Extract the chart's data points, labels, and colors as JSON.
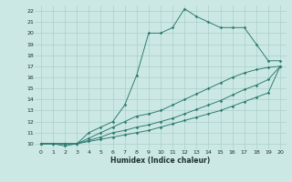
{
  "xlabel": "Humidex (Indice chaleur)",
  "bg_color": "#cce8e4",
  "grid_color": "#aacfcb",
  "line_color": "#2e7d72",
  "xlim": [
    -0.5,
    20.5
  ],
  "ylim": [
    9.5,
    22.5
  ],
  "xticks": [
    0,
    1,
    2,
    3,
    4,
    5,
    6,
    7,
    8,
    9,
    10,
    11,
    12,
    13,
    14,
    15,
    16,
    17,
    18,
    19,
    20
  ],
  "yticks": [
    10,
    11,
    12,
    13,
    14,
    15,
    16,
    17,
    18,
    19,
    20,
    21,
    22
  ],
  "series": [
    {
      "x": [
        0,
        1,
        2,
        3,
        4,
        5,
        6,
        7,
        8,
        9,
        10,
        11,
        12,
        13,
        14,
        15,
        16,
        17,
        18,
        19,
        20
      ],
      "y": [
        10,
        10,
        9.8,
        10,
        11,
        11.5,
        12,
        13.5,
        16.2,
        20,
        20,
        20.5,
        22.2,
        21.5,
        21,
        20.5,
        20.5,
        20.5,
        19,
        17.5,
        17.5
      ]
    },
    {
      "x": [
        0,
        1,
        2,
        3,
        4,
        5,
        6,
        7,
        8,
        9,
        10,
        11,
        12,
        13,
        14,
        15,
        16,
        17,
        18,
        19,
        20
      ],
      "y": [
        10,
        10,
        10,
        10,
        10.2,
        10.4,
        10.6,
        10.8,
        11,
        11.2,
        11.5,
        11.8,
        12.1,
        12.4,
        12.7,
        13.0,
        13.4,
        13.8,
        14.2,
        14.6,
        17
      ]
    },
    {
      "x": [
        0,
        1,
        2,
        3,
        4,
        5,
        6,
        7,
        8,
        9,
        10,
        11,
        12,
        13,
        14,
        15,
        16,
        17,
        18,
        19,
        20
      ],
      "y": [
        10,
        10,
        10,
        10,
        10.3,
        10.6,
        11.0,
        11.2,
        11.5,
        11.7,
        12.0,
        12.3,
        12.7,
        13.1,
        13.5,
        13.9,
        14.4,
        14.9,
        15.3,
        15.8,
        17
      ]
    },
    {
      "x": [
        0,
        1,
        2,
        3,
        4,
        5,
        6,
        7,
        8,
        9,
        10,
        11,
        12,
        13,
        14,
        15,
        16,
        17,
        18,
        19,
        20
      ],
      "y": [
        10,
        10,
        10,
        10,
        10.5,
        11.0,
        11.5,
        12.0,
        12.5,
        12.7,
        13.0,
        13.5,
        14.0,
        14.5,
        15.0,
        15.5,
        16.0,
        16.4,
        16.7,
        16.9,
        17
      ]
    }
  ],
  "marker_x": {
    "series0": [
      0,
      1,
      2,
      3,
      4,
      5,
      6,
      7,
      8,
      9,
      10,
      11,
      12,
      13,
      14,
      15,
      16,
      17,
      18,
      19,
      20
    ],
    "series1": [
      3,
      4,
      5,
      6,
      7,
      8,
      9,
      10,
      11,
      12,
      13,
      14,
      15,
      16,
      17,
      18,
      19,
      20
    ],
    "series2": [
      3,
      4,
      5,
      6,
      7,
      8,
      9,
      10,
      11,
      12,
      13,
      14,
      15,
      16,
      17,
      18,
      19,
      20
    ],
    "series3": [
      3,
      4,
      5,
      6,
      7,
      8,
      9,
      10,
      11,
      12,
      13,
      14,
      15,
      16,
      17,
      18,
      19,
      20
    ]
  }
}
